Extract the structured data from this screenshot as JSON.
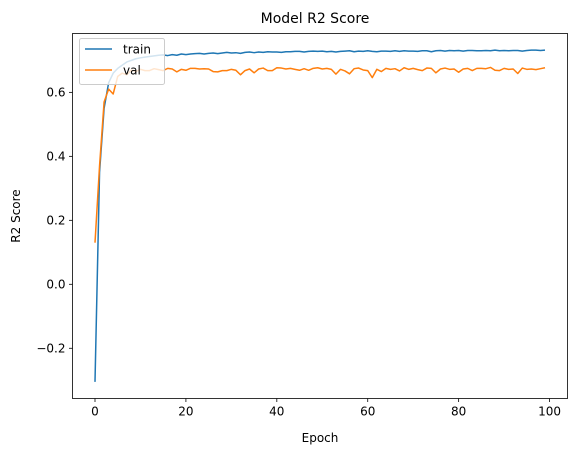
{
  "chart_data": {
    "type": "line",
    "title": "Model R2 Score",
    "xlabel": "Epoch",
    "ylabel": "R2 Score",
    "xlim": [
      -4.95,
      103.95
    ],
    "ylim": [
      -0.357,
      0.784
    ],
    "xticks": [
      0,
      20,
      40,
      60,
      80,
      100
    ],
    "yticks": [
      -0.2,
      0.0,
      0.2,
      0.4,
      0.6
    ],
    "ytick_labels": [
      "−0.2",
      "0.0",
      "0.2",
      "0.4",
      "0.6"
    ],
    "grid": false,
    "legend": "upper left",
    "series": [
      {
        "name": "train",
        "color": "#1f77b4",
        "values": [
          -0.305,
          0.35,
          0.55,
          0.63,
          0.66,
          0.675,
          0.685,
          0.695,
          0.7,
          0.705,
          0.708,
          0.71,
          0.712,
          0.714,
          0.716,
          0.717,
          0.715,
          0.718,
          0.716,
          0.72,
          0.718,
          0.72,
          0.721,
          0.722,
          0.72,
          0.722,
          0.723,
          0.721,
          0.723,
          0.725,
          0.723,
          0.724,
          0.722,
          0.725,
          0.726,
          0.724,
          0.726,
          0.725,
          0.727,
          0.726,
          0.726,
          0.725,
          0.727,
          0.727,
          0.728,
          0.728,
          0.726,
          0.728,
          0.729,
          0.728,
          0.729,
          0.727,
          0.728,
          0.726,
          0.728,
          0.729,
          0.73,
          0.727,
          0.729,
          0.728,
          0.73,
          0.728,
          0.727,
          0.729,
          0.729,
          0.728,
          0.73,
          0.728,
          0.73,
          0.729,
          0.729,
          0.728,
          0.73,
          0.73,
          0.727,
          0.73,
          0.731,
          0.729,
          0.731,
          0.73,
          0.731,
          0.729,
          0.731,
          0.731,
          0.73,
          0.73,
          0.731,
          0.73,
          0.732,
          0.73,
          0.731,
          0.73,
          0.731,
          0.731,
          0.729,
          0.731,
          0.732,
          0.732,
          0.731,
          0.732
        ]
      },
      {
        "name": "val",
        "color": "#ff7f0e",
        "values": [
          0.13,
          0.37,
          0.57,
          0.61,
          0.595,
          0.65,
          0.66,
          0.655,
          0.67,
          0.665,
          0.672,
          0.668,
          0.668,
          0.674,
          0.671,
          0.668,
          0.675,
          0.673,
          0.664,
          0.672,
          0.669,
          0.675,
          0.675,
          0.673,
          0.674,
          0.673,
          0.665,
          0.664,
          0.668,
          0.668,
          0.672,
          0.669,
          0.655,
          0.668,
          0.673,
          0.661,
          0.673,
          0.676,
          0.668,
          0.668,
          0.677,
          0.676,
          0.673,
          0.675,
          0.672,
          0.669,
          0.674,
          0.669,
          0.675,
          0.677,
          0.673,
          0.675,
          0.672,
          0.657,
          0.672,
          0.667,
          0.658,
          0.674,
          0.676,
          0.67,
          0.668,
          0.646,
          0.672,
          0.665,
          0.675,
          0.672,
          0.674,
          0.667,
          0.677,
          0.672,
          0.675,
          0.671,
          0.668,
          0.676,
          0.675,
          0.661,
          0.673,
          0.676,
          0.672,
          0.673,
          0.663,
          0.673,
          0.675,
          0.668,
          0.675,
          0.675,
          0.674,
          0.678,
          0.669,
          0.668,
          0.675,
          0.672,
          0.673,
          0.659,
          0.676,
          0.672,
          0.673,
          0.671,
          0.674,
          0.677
        ]
      }
    ]
  }
}
